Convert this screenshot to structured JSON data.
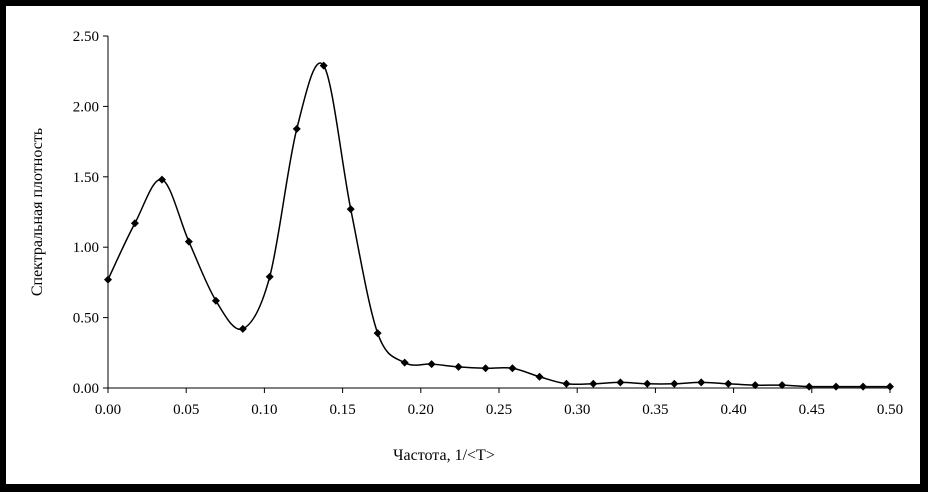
{
  "chart_data": {
    "type": "line",
    "xlabel": "Частота, 1/<T>",
    "ylabel": "Спектральная плотность",
    "xlim": [
      0,
      0.5
    ],
    "ylim": [
      0,
      2.5
    ],
    "x_ticks": [
      "0.00",
      "0.05",
      "0.10",
      "0.15",
      "0.20",
      "0.25",
      "0.30",
      "0.35",
      "0.40",
      "0.45",
      "0.50"
    ],
    "y_ticks": [
      "0.00",
      "0.50",
      "1.00",
      "1.50",
      "2.00",
      "2.50"
    ],
    "grid": false,
    "legend": "none",
    "series": [
      {
        "marker": "diamond",
        "smooth": true,
        "color": "#000000",
        "x": [
          0.0,
          0.0172,
          0.0345,
          0.0517,
          0.069,
          0.0862,
          0.1034,
          0.1207,
          0.1379,
          0.1552,
          0.1724,
          0.1897,
          0.2069,
          0.2241,
          0.2414,
          0.2586,
          0.2759,
          0.2931,
          0.3103,
          0.3276,
          0.3448,
          0.3621,
          0.3793,
          0.3966,
          0.4138,
          0.431,
          0.4483,
          0.4655,
          0.4828,
          0.5
        ],
        "values": [
          0.77,
          1.17,
          1.48,
          1.04,
          0.62,
          0.42,
          0.79,
          1.84,
          2.29,
          1.27,
          0.39,
          0.18,
          0.17,
          0.15,
          0.14,
          0.14,
          0.08,
          0.03,
          0.03,
          0.04,
          0.03,
          0.03,
          0.04,
          0.03,
          0.02,
          0.02,
          0.01,
          0.01,
          0.01,
          0.01
        ]
      }
    ]
  }
}
